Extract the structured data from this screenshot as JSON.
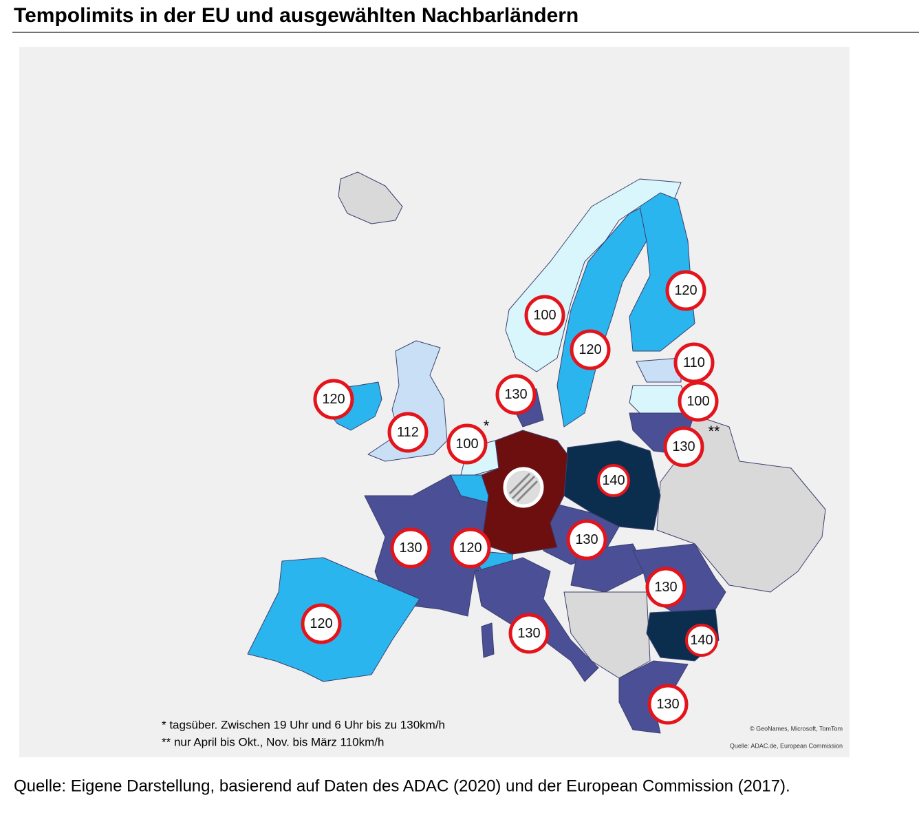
{
  "title": "Tempolimits in der EU und ausgewählten Nachbarländern",
  "map": {
    "signs": [
      "120",
      "100",
      "120",
      "110",
      "120",
      "130",
      "100",
      "112",
      "100",
      "130",
      "140",
      "130",
      "120",
      "130",
      "130",
      "120",
      "130",
      "140",
      "130"
    ],
    "markers": [
      "*",
      "**"
    ],
    "notes": [
      "* tagsüber. Zwischen 19 Uhr und 6 Uhr bis zu 130km/h",
      "** nur April bis Okt., Nov. bis März 110km/h"
    ],
    "attributions": [
      "© GeoNames, Microsoft, TomTom",
      "Quelle: ADAC.de, European Commission"
    ]
  },
  "source": "Quelle: Eigene Darstellung, basierend auf Daten des ADAC (2020) und der European Commission (2017)."
}
